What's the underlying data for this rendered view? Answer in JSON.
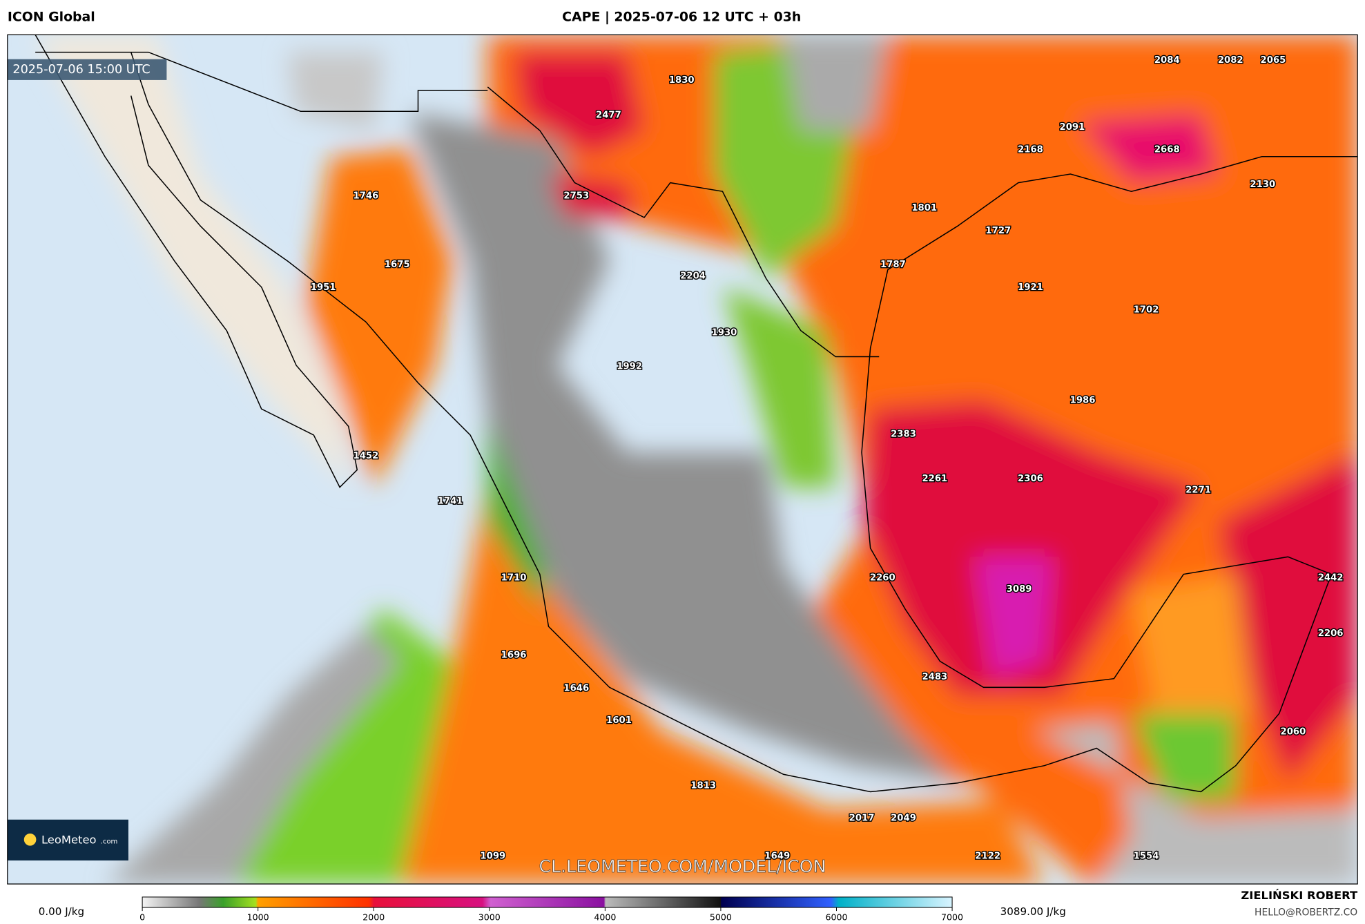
{
  "header": {
    "model": "ICON Global",
    "title": "CAPE | 2025-07-06 12 UTC + 03h"
  },
  "map": {
    "valid_time": "2025-07-06 15:00 UTC",
    "point_values": [
      1830,
      2477,
      2084,
      2082,
      2065,
      2091,
      2168,
      2668,
      2130,
      2753,
      1746,
      1801,
      1727,
      1675,
      1787,
      1951,
      2204,
      1921,
      1702,
      1930,
      1992,
      1986,
      2383,
      1452,
      2261,
      2306,
      2271,
      1741,
      1710,
      2260,
      3089,
      2442,
      2206,
      1696,
      1646,
      2483,
      1601,
      2060,
      1813,
      2017,
      2049,
      1099,
      1649,
      2122,
      1554
    ],
    "watermark": "CL.LEOMETEO.COM/MODEL/ICON",
    "logo": {
      "name": "LeoMeteo",
      "suffix": ".com"
    }
  },
  "legend": {
    "min_label": "0.00 J/kg",
    "max_label": "3089.00 J/kg",
    "lim": [
      0,
      7000
    ],
    "ticks": [
      0,
      1000,
      2000,
      3000,
      4000,
      5000,
      6000,
      7000
    ]
  },
  "footer": {
    "author": "ZIELIŃSKI ROBERT",
    "contact": "HELLO@ROBERTZ.CO"
  }
}
